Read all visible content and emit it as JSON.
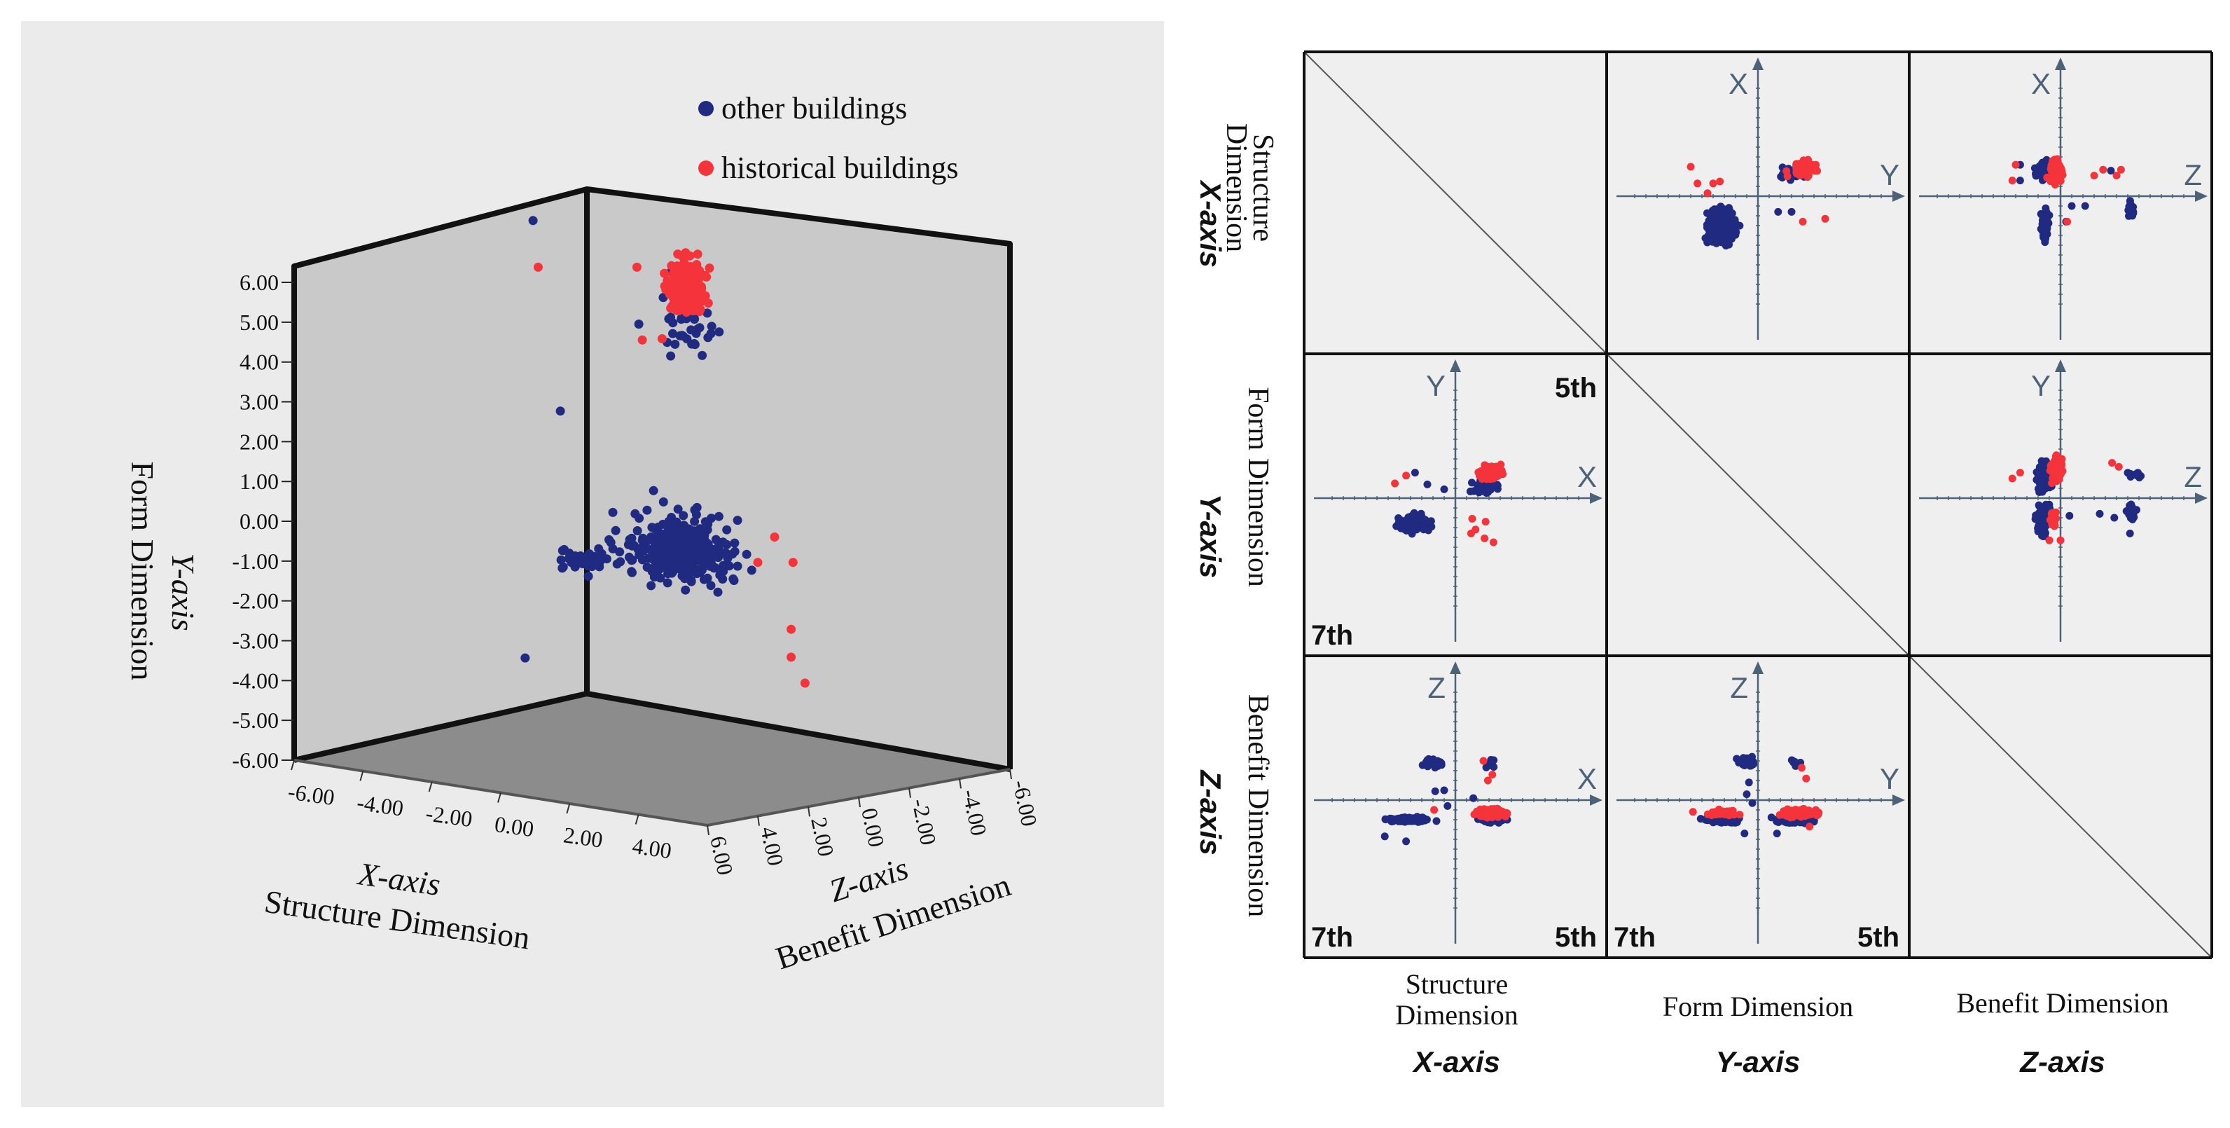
{
  "colors": {
    "other": "#1f2a80",
    "historical": "#f4333b",
    "axis": "#4c6278",
    "wall": "#c9c9c9",
    "floor": "#8c8c8c",
    "panel": "#efefef",
    "frame": "#111111"
  },
  "chart_data": [
    {
      "type": "scatter3d",
      "legend": {
        "placement": "top-right",
        "entries": [
          "other buildings",
          "historical buildings"
        ]
      },
      "axes": {
        "x": {
          "name": "X-axis",
          "label": "Structure Dimension",
          "range": [
            -6,
            6
          ],
          "ticks": [
            "-6.00",
            "-4.00",
            "-2.00",
            "0.00",
            "2.00",
            "4.00"
          ]
        },
        "y": {
          "name": "Y-axis",
          "label": "Form Dimension",
          "range": [
            -6,
            6
          ],
          "ticks": [
            "6.00",
            "5.00",
            "4.00",
            "3.00",
            "2.00",
            "1.00",
            "0.00",
            "-1.00",
            "-2.00",
            "-3.00",
            "-4.00",
            "-5.00",
            "-6.00"
          ]
        },
        "z": {
          "name": "Z-axis",
          "label": "Benefit Dimension",
          "range": [
            -6,
            6
          ],
          "ticks": [
            "6.00",
            "4.00",
            "2.00",
            "0.00",
            "-2.00",
            "-4.00",
            "-6.00"
          ]
        }
      },
      "series": [
        {
          "name": "other buildings",
          "clusters": [
            {
              "center": [
                0.6,
                -1.6,
                -0.4
              ],
              "spread": [
                1.3,
                0.8,
                0.7
              ],
              "n": 330
            },
            {
              "center": [
                -2.2,
                -1.9,
                -0.3
              ],
              "spread": [
                0.7,
                0.25,
                0.3
              ],
              "n": 40
            },
            {
              "center": [
                3.6,
                3.4,
                3.6
              ],
              "spread": [
                0.55,
                0.8,
                0.5
              ],
              "n": 40
            }
          ],
          "points": [
            [
              -1.3,
              6.1,
              3.0
            ],
            [
              -2.6,
              1.8,
              0.0
            ],
            [
              -3.6,
              -4.4,
              0.0
            ],
            [
              1.7,
              3.5,
              3.0
            ]
          ]
        },
        {
          "name": "historical buildings",
          "clusters": [
            {
              "center": [
                3.6,
                4.3,
                3.8
              ],
              "spread": [
                0.35,
                0.55,
                0.3
              ],
              "n": 300
            }
          ],
          "points": [
            [
              -0.6,
              4.8,
              3.8
            ],
            [
              2.2,
              4.8,
              3.8
            ],
            [
              1.8,
              3.1,
              3.0
            ],
            [
              2.5,
              3.1,
              3.2
            ],
            [
              3.2,
              -1.3,
              -0.4
            ],
            [
              3.0,
              -2.0,
              0.0
            ],
            [
              4.0,
              -2.0,
              0.0
            ],
            [
              3.6,
              -3.6,
              -0.5
            ],
            [
              3.6,
              -4.3,
              -0.5
            ],
            [
              4.2,
              -5.0,
              -0.2
            ]
          ]
        }
      ]
    },
    {
      "type": "scatter_matrix",
      "variables": [
        {
          "axis": "X-axis",
          "label_line1": "Structure",
          "label_line2": "Dimension"
        },
        {
          "axis": "Y-axis",
          "label": "Form  Dimension"
        },
        {
          "axis": "Z-axis",
          "label": "Benefit  Dimension"
        }
      ],
      "row_titles": [
        {
          "axis": "X-axis",
          "label_line1": "Structure",
          "label_line2": "Dimension"
        },
        {
          "axis": "Y-axis",
          "label": "Form  Dimension"
        },
        {
          "axis": "Z-axis",
          "label": "Benefit  Dimension"
        }
      ],
      "cells": [
        {
          "row": 0,
          "col": 1,
          "axis_labels": {
            "vertical": "X",
            "horizontal": "Y"
          },
          "corner_labels": [],
          "other": [
            {
              "center": [
                -3.2,
                -3.0
              ],
              "spread": [
                1.2,
                1.5
              ],
              "n": 220
            },
            {
              "center": [
                3.2,
                2.4
              ],
              "spread": [
                1.2,
                0.5
              ],
              "n": 45
            }
          ],
          "historical": [
            {
              "center": [
                4.2,
                2.8
              ],
              "spread": [
                0.8,
                0.55
              ],
              "n": 180
            }
          ],
          "other_points": [
            [
              1.8,
              -1.6
            ],
            [
              3.0,
              -1.6
            ]
          ],
          "historical_points": [
            [
              -6.0,
              3.0
            ],
            [
              -5.4,
              1.3
            ],
            [
              -4.0,
              1.3
            ],
            [
              -3.4,
              1.5
            ],
            [
              -4.5,
              0.3
            ],
            [
              4.0,
              -2.6
            ],
            [
              6.0,
              -2.3
            ]
          ]
        },
        {
          "row": 0,
          "col": 2,
          "axis_labels": {
            "vertical": "X",
            "horizontal": "Z"
          },
          "corner_labels": [],
          "other": [
            {
              "center": [
                -1.5,
                2.6
              ],
              "spread": [
                0.6,
                0.8
              ],
              "n": 90
            },
            {
              "center": [
                -1.4,
                -3.0
              ],
              "spread": [
                0.25,
                1.5
              ],
              "n": 110
            },
            {
              "center": [
                6.3,
                -1.5
              ],
              "spread": [
                0.3,
                0.8
              ],
              "n": 25
            }
          ],
          "historical": [
            {
              "center": [
                -0.4,
                2.5
              ],
              "spread": [
                0.5,
                1.2
              ],
              "n": 170
            }
          ],
          "other_points": [
            [
              -3.6,
              3.2
            ],
            [
              -3.6,
              1.6
            ],
            [
              1.0,
              -1.0
            ],
            [
              2.2,
              -1.0
            ],
            [
              0.5,
              -2.6
            ],
            [
              4.5,
              2.6
            ]
          ],
          "historical_points": [
            [
              -4.0,
              3.2
            ],
            [
              -4.3,
              1.6
            ],
            [
              3.0,
              2.1
            ],
            [
              5.0,
              2.1
            ],
            [
              3.8,
              2.7
            ],
            [
              5.4,
              2.7
            ],
            [
              0.6,
              -2.6
            ]
          ]
        },
        {
          "row": 1,
          "col": 0,
          "axis_labels": {
            "vertical": "Y",
            "horizontal": "X"
          },
          "corner_labels": [
            "5th",
            "7th"
          ],
          "other": [
            {
              "center": [
                -3.6,
                -2.5
              ],
              "spread": [
                1.1,
                0.7
              ],
              "n": 240
            },
            {
              "center": [
                2.6,
                1.2
              ],
              "spread": [
                1.0,
                0.8
              ],
              "n": 60
            }
          ],
          "historical": [
            {
              "center": [
                3.2,
                2.6
              ],
              "spread": [
                0.9,
                0.6
              ],
              "n": 180
            }
          ],
          "other_points": [
            [
              -2.5,
              1.4
            ],
            [
              -3.6,
              2.6
            ],
            [
              -1.0,
              0.9
            ]
          ],
          "historical_points": [
            [
              -4.4,
              2.3
            ],
            [
              -5.4,
              1.5
            ],
            [
              1.5,
              -2.1
            ],
            [
              1.8,
              -3.2
            ],
            [
              2.7,
              -2.4
            ],
            [
              1.4,
              -3.6
            ],
            [
              2.6,
              -4.1
            ],
            [
              3.4,
              -4.5
            ]
          ]
        },
        {
          "row": 1,
          "col": 2,
          "axis_labels": {
            "vertical": "Y",
            "horizontal": "Z"
          },
          "corner_labels": [],
          "other": [
            {
              "center": [
                -1.5,
                2.2
              ],
              "spread": [
                0.6,
                1.3
              ],
              "n": 120
            },
            {
              "center": [
                -1.5,
                -2.2
              ],
              "spread": [
                0.45,
                1.5
              ],
              "n": 120
            },
            {
              "center": [
                6.3,
                -1.5
              ],
              "spread": [
                0.4,
                0.8
              ],
              "n": 25
            },
            {
              "center": [
                6.4,
                2.4
              ],
              "spread": [
                0.6,
                0.4
              ],
              "n": 12
            }
          ],
          "historical": [
            {
              "center": [
                -0.4,
                3.0
              ],
              "spread": [
                0.45,
                1.0
              ],
              "n": 160
            },
            {
              "center": [
                -0.6,
                -2.2
              ],
              "spread": [
                0.3,
                0.8
              ],
              "n": 30
            }
          ],
          "other_points": [
            [
              0.8,
              -1.8
            ],
            [
              3.5,
              -1.6
            ],
            [
              4.8,
              -2.0
            ],
            [
              6.2,
              -3.6
            ]
          ],
          "historical_points": [
            [
              -3.6,
              2.6
            ],
            [
              -4.3,
              2.0
            ],
            [
              4.6,
              3.6
            ],
            [
              5.2,
              3.2
            ],
            [
              -1.0,
              -4.3
            ],
            [
              0.0,
              -4.3
            ]
          ]
        },
        {
          "row": 2,
          "col": 0,
          "axis_labels": {
            "vertical": "Z",
            "horizontal": "X"
          },
          "corner_labels": [
            "7th",
            "5th"
          ],
          "other": [
            {
              "center": [
                -4.3,
                -2.0
              ],
              "spread": [
                1.4,
                0.2
              ],
              "n": 200
            },
            {
              "center": [
                3.3,
                -2.0
              ],
              "spread": [
                1.2,
                0.3
              ],
              "n": 60
            },
            {
              "center": [
                -2.0,
                3.8
              ],
              "spread": [
                1.1,
                0.4
              ],
              "n": 30
            },
            {
              "center": [
                3.0,
                3.7
              ],
              "spread": [
                0.5,
                0.5
              ],
              "n": 10
            }
          ],
          "historical": [
            {
              "center": [
                3.3,
                -1.3
              ],
              "spread": [
                1.1,
                0.35
              ],
              "n": 170
            }
          ],
          "other_points": [
            [
              -6.3,
              -3.7
            ],
            [
              -4.4,
              -4.2
            ],
            [
              -1.8,
              0.9
            ],
            [
              -1.0,
              1.0
            ],
            [
              -0.7,
              -0.6
            ],
            [
              1.6,
              0.2
            ]
          ],
          "historical_points": [
            [
              -1.9,
              -1.0
            ],
            [
              2.5,
              4.0
            ],
            [
              3.3,
              2.6
            ],
            [
              2.9,
              2.0
            ]
          ]
        },
        {
          "row": 2,
          "col": 1,
          "axis_labels": {
            "vertical": "Z",
            "horizontal": "Y"
          },
          "corner_labels": [
            "7th",
            "5th"
          ],
          "other": [
            {
              "center": [
                -3.0,
                -2.0
              ],
              "spread": [
                1.5,
                0.25
              ],
              "n": 160
            },
            {
              "center": [
                3.2,
                -2.0
              ],
              "spread": [
                1.6,
                0.35
              ],
              "n": 100
            },
            {
              "center": [
                -0.9,
                4.0
              ],
              "spread": [
                0.7,
                0.5
              ],
              "n": 25
            },
            {
              "center": [
                3.3,
                3.8
              ],
              "spread": [
                0.6,
                0.4
              ],
              "n": 10
            }
          ],
          "historical": [
            {
              "center": [
                -3.0,
                -1.3
              ],
              "spread": [
                1.3,
                0.25
              ],
              "n": 40
            },
            {
              "center": [
                3.7,
                -1.3
              ],
              "spread": [
                1.3,
                0.35
              ],
              "n": 150
            }
          ],
          "other_points": [
            [
              -0.8,
              1.8
            ],
            [
              -1.0,
              0.6
            ],
            [
              -0.5,
              -0.3
            ],
            [
              -1.2,
              -3.4
            ],
            [
              1.7,
              -3.4
            ]
          ],
          "historical_points": [
            [
              -5.8,
              -1.2
            ],
            [
              4.3,
              2.2
            ],
            [
              4.6,
              -2.7
            ],
            [
              3.9,
              3.3
            ]
          ]
        }
      ]
    }
  ]
}
